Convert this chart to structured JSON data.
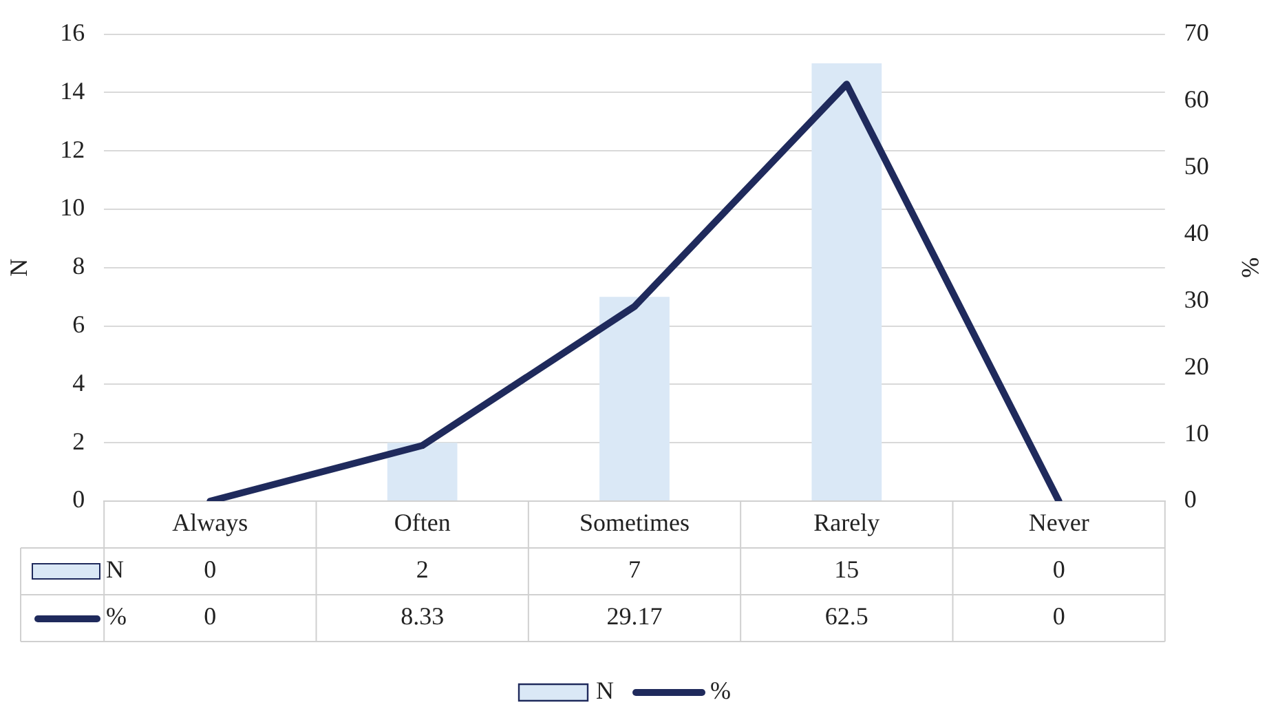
{
  "chart_data": {
    "type": "bar",
    "categories": [
      "Always",
      "Often",
      "Sometimes",
      "Rarely",
      "Never"
    ],
    "series": [
      {
        "name": "N",
        "color": "#dae8f6",
        "values": [
          0,
          2,
          7,
          15,
          0
        ]
      },
      {
        "name": "%",
        "type": "line",
        "axis": "y2",
        "color": "#1f2a5c",
        "values": [
          0,
          8.33,
          29.17,
          62.5,
          0
        ]
      }
    ],
    "ylabel": "N",
    "y2label": "%",
    "ylim": [
      0,
      16
    ],
    "yticks": [
      0,
      2,
      4,
      6,
      8,
      10,
      12,
      14,
      16
    ],
    "y2lim": [
      0,
      70
    ],
    "y2ticks": [
      0,
      10,
      20,
      30,
      40,
      50,
      60,
      70
    ],
    "grid": "y",
    "legend": "bottom",
    "data_labels": true,
    "marker": "none",
    "line_style": "solid"
  }
}
